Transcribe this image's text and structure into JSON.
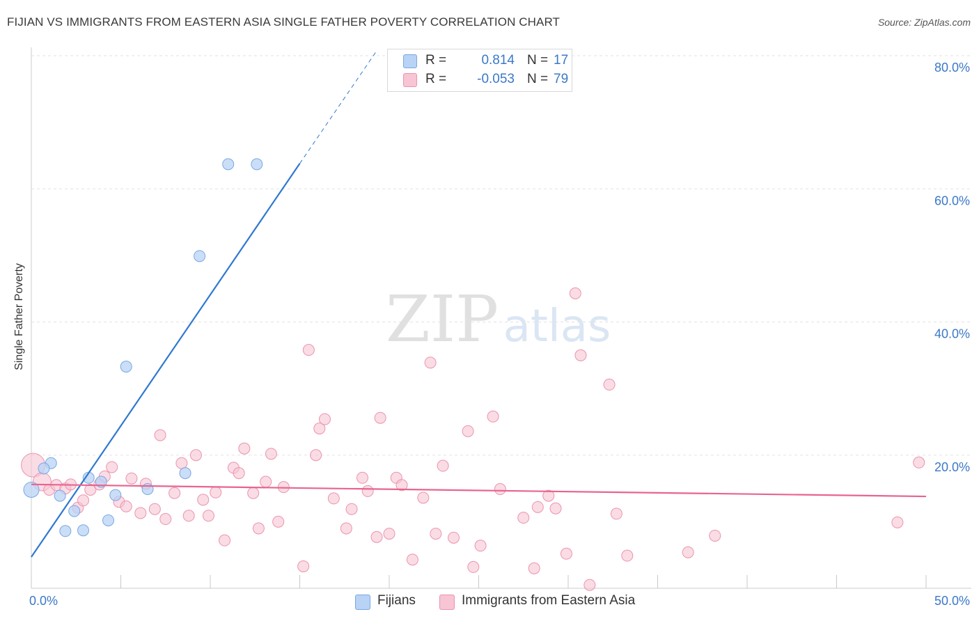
{
  "chart_data": {
    "type": "scatter",
    "title": "FIJIAN VS IMMIGRANTS FROM EASTERN ASIA SINGLE FATHER POVERTY CORRELATION CHART",
    "source": "Source: ZipAtlas.com",
    "ylabel": "Single Father Poverty",
    "watermark": {
      "zip": "ZIP",
      "atlas": "atlas"
    },
    "xlim": [
      0,
      50
    ],
    "ylim": [
      0,
      80
    ],
    "x_tick_labels": [
      {
        "value": 0,
        "label": "0.0%"
      },
      {
        "value": 50,
        "label": "50.0%"
      }
    ],
    "y_tick_labels": [
      {
        "value": 20,
        "label": "20.0%"
      },
      {
        "value": 40,
        "label": "40.0%"
      },
      {
        "value": 60,
        "label": "60.0%"
      },
      {
        "value": 80,
        "label": "80.0%"
      }
    ],
    "colors": {
      "fijians_fill": "#b8d3f5",
      "fijians_stroke": "#7aa7e0",
      "fijians_line": "#2f78cf",
      "eastasia_fill": "#f7c5d4",
      "eastasia_stroke": "#eb93ad",
      "eastasia_line": "#e8648f",
      "accent_text": "#3b78c7"
    },
    "legend": [
      {
        "r_label": "R =",
        "r_value": "0.814",
        "n_label": "N =",
        "n_value": "17"
      },
      {
        "r_label": "R =",
        "r_value": "-0.053",
        "n_label": "N =",
        "n_value": "79"
      }
    ],
    "series": [
      {
        "name": "Fijians",
        "trend": {
          "x_start": 0,
          "y_start": 4.7,
          "x_solid_end": 15.0,
          "x_dash_end": 19.3
        },
        "points": [
          [
            0.0,
            14.8
          ],
          [
            1.1,
            18.8
          ],
          [
            0.7,
            18.0
          ],
          [
            1.6,
            13.9
          ],
          [
            1.9,
            8.6
          ],
          [
            2.4,
            11.6
          ],
          [
            2.9,
            8.7
          ],
          [
            3.2,
            16.6
          ],
          [
            3.9,
            16.0
          ],
          [
            4.3,
            10.2
          ],
          [
            4.7,
            14.0
          ],
          [
            5.3,
            33.3
          ],
          [
            6.5,
            14.9
          ],
          [
            8.6,
            17.3
          ],
          [
            9.4,
            49.9
          ],
          [
            11.0,
            63.7
          ],
          [
            12.6,
            63.7
          ]
        ]
      },
      {
        "name": "Immigrants from Eastern Asia",
        "trend": {
          "x_start": 0,
          "y_start": 15.6,
          "x_end": 50,
          "y_end": 13.8
        },
        "points": [
          [
            0.1,
            18.5
          ],
          [
            0.6,
            16.0
          ],
          [
            1.0,
            14.8
          ],
          [
            1.4,
            15.5
          ],
          [
            1.9,
            15.0
          ],
          [
            2.2,
            15.6
          ],
          [
            2.6,
            12.1
          ],
          [
            2.9,
            13.2
          ],
          [
            3.3,
            14.8
          ],
          [
            3.8,
            15.6
          ],
          [
            4.1,
            16.8
          ],
          [
            4.5,
            18.2
          ],
          [
            4.9,
            13.0
          ],
          [
            5.3,
            12.3
          ],
          [
            5.6,
            16.5
          ],
          [
            6.1,
            11.3
          ],
          [
            6.4,
            15.7
          ],
          [
            6.9,
            11.9
          ],
          [
            7.2,
            23.0
          ],
          [
            7.5,
            10.4
          ],
          [
            8.0,
            14.3
          ],
          [
            8.4,
            18.8
          ],
          [
            8.8,
            10.9
          ],
          [
            9.2,
            20.0
          ],
          [
            9.6,
            13.3
          ],
          [
            9.9,
            10.9
          ],
          [
            10.3,
            14.4
          ],
          [
            10.8,
            7.2
          ],
          [
            11.3,
            18.1
          ],
          [
            11.6,
            17.3
          ],
          [
            11.9,
            21.0
          ],
          [
            12.4,
            14.3
          ],
          [
            12.7,
            9.0
          ],
          [
            13.1,
            16.0
          ],
          [
            13.4,
            20.2
          ],
          [
            13.8,
            10.0
          ],
          [
            14.1,
            15.2
          ],
          [
            15.2,
            3.3
          ],
          [
            15.5,
            35.8
          ],
          [
            15.9,
            20.0
          ],
          [
            16.1,
            24.0
          ],
          [
            16.4,
            25.4
          ],
          [
            16.9,
            13.5
          ],
          [
            17.6,
            9.0
          ],
          [
            17.9,
            11.9
          ],
          [
            18.5,
            16.6
          ],
          [
            18.8,
            14.6
          ],
          [
            19.3,
            7.7
          ],
          [
            19.5,
            25.6
          ],
          [
            20.0,
            8.2
          ],
          [
            20.4,
            16.6
          ],
          [
            20.7,
            15.5
          ],
          [
            21.3,
            4.3
          ],
          [
            21.9,
            13.6
          ],
          [
            22.3,
            33.9
          ],
          [
            22.6,
            8.2
          ],
          [
            23.0,
            18.4
          ],
          [
            23.6,
            7.6
          ],
          [
            24.4,
            23.6
          ],
          [
            24.7,
            3.2
          ],
          [
            25.1,
            6.4
          ],
          [
            25.8,
            25.8
          ],
          [
            26.2,
            14.9
          ],
          [
            27.5,
            10.6
          ],
          [
            28.1,
            3.0
          ],
          [
            28.3,
            12.2
          ],
          [
            28.9,
            13.9
          ],
          [
            29.3,
            12.0
          ],
          [
            29.9,
            5.2
          ],
          [
            30.4,
            44.3
          ],
          [
            30.7,
            35.0
          ],
          [
            31.2,
            0.5
          ],
          [
            32.3,
            30.6
          ],
          [
            32.7,
            11.2
          ],
          [
            33.3,
            4.9
          ],
          [
            36.7,
            5.4
          ],
          [
            38.2,
            7.9
          ],
          [
            48.4,
            9.9
          ],
          [
            49.6,
            18.9
          ]
        ]
      }
    ]
  }
}
